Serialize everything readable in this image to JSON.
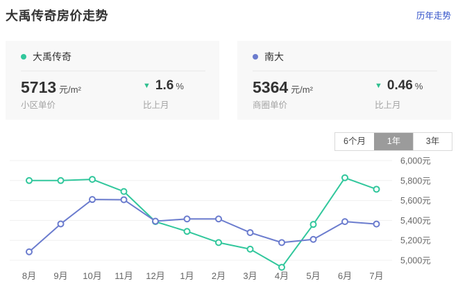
{
  "header": {
    "title": "大禹传奇房价走势",
    "link": "历年走势"
  },
  "cards": [
    {
      "name": "大禹传奇",
      "dot_color": "#31c79c",
      "price": "5713",
      "price_unit": "元/m²",
      "price_label": "小区单价",
      "trend_icon": "▼",
      "trend_color": "#2fbf8f",
      "change": "1.6",
      "change_sign": "%",
      "change_label": "比上月"
    },
    {
      "name": "南大",
      "dot_color": "#6b7cce",
      "price": "5364",
      "price_unit": "元/m²",
      "price_label": "商圈单价",
      "trend_icon": "▼",
      "trend_color": "#2fbf8f",
      "change": "0.46",
      "change_sign": "%",
      "change_label": "比上月"
    }
  ],
  "tabs": [
    {
      "label": "6个月",
      "active": false
    },
    {
      "label": "1年",
      "active": true
    },
    {
      "label": "3年",
      "active": false
    }
  ],
  "chart_data": {
    "type": "line",
    "categories": [
      "8月",
      "9月",
      "10月",
      "11月",
      "12月",
      "1月",
      "2月",
      "3月",
      "4月",
      "5月",
      "6月",
      "7月"
    ],
    "series": [
      {
        "name": "大禹传奇",
        "color": "#31c79c",
        "values": [
          5800,
          5800,
          5812,
          5690,
          5388,
          5290,
          5178,
          5112,
          4930,
          5360,
          5828,
          5713
        ]
      },
      {
        "name": "南大",
        "color": "#6b7cce",
        "values": [
          5085,
          5365,
          5610,
          5608,
          5392,
          5415,
          5415,
          5278,
          5178,
          5210,
          5388,
          5364
        ]
      }
    ],
    "y_ticks": [
      6000,
      5800,
      5600,
      5400,
      5200,
      5000
    ],
    "y_tick_labels": [
      "6,000元",
      "5,800元",
      "5,600元",
      "5,400元",
      "5,200元",
      "5,000元"
    ],
    "ylim": [
      4870,
      6080
    ],
    "grid": true,
    "legend_position": "stat-cards-above"
  },
  "colors": {
    "link_blue": "#3151c9",
    "grid_line": "#f0f0f0",
    "axis_text": "#666666",
    "tab_active_bg": "#9b9b9b",
    "card_bg": "#f8f8f8"
  }
}
